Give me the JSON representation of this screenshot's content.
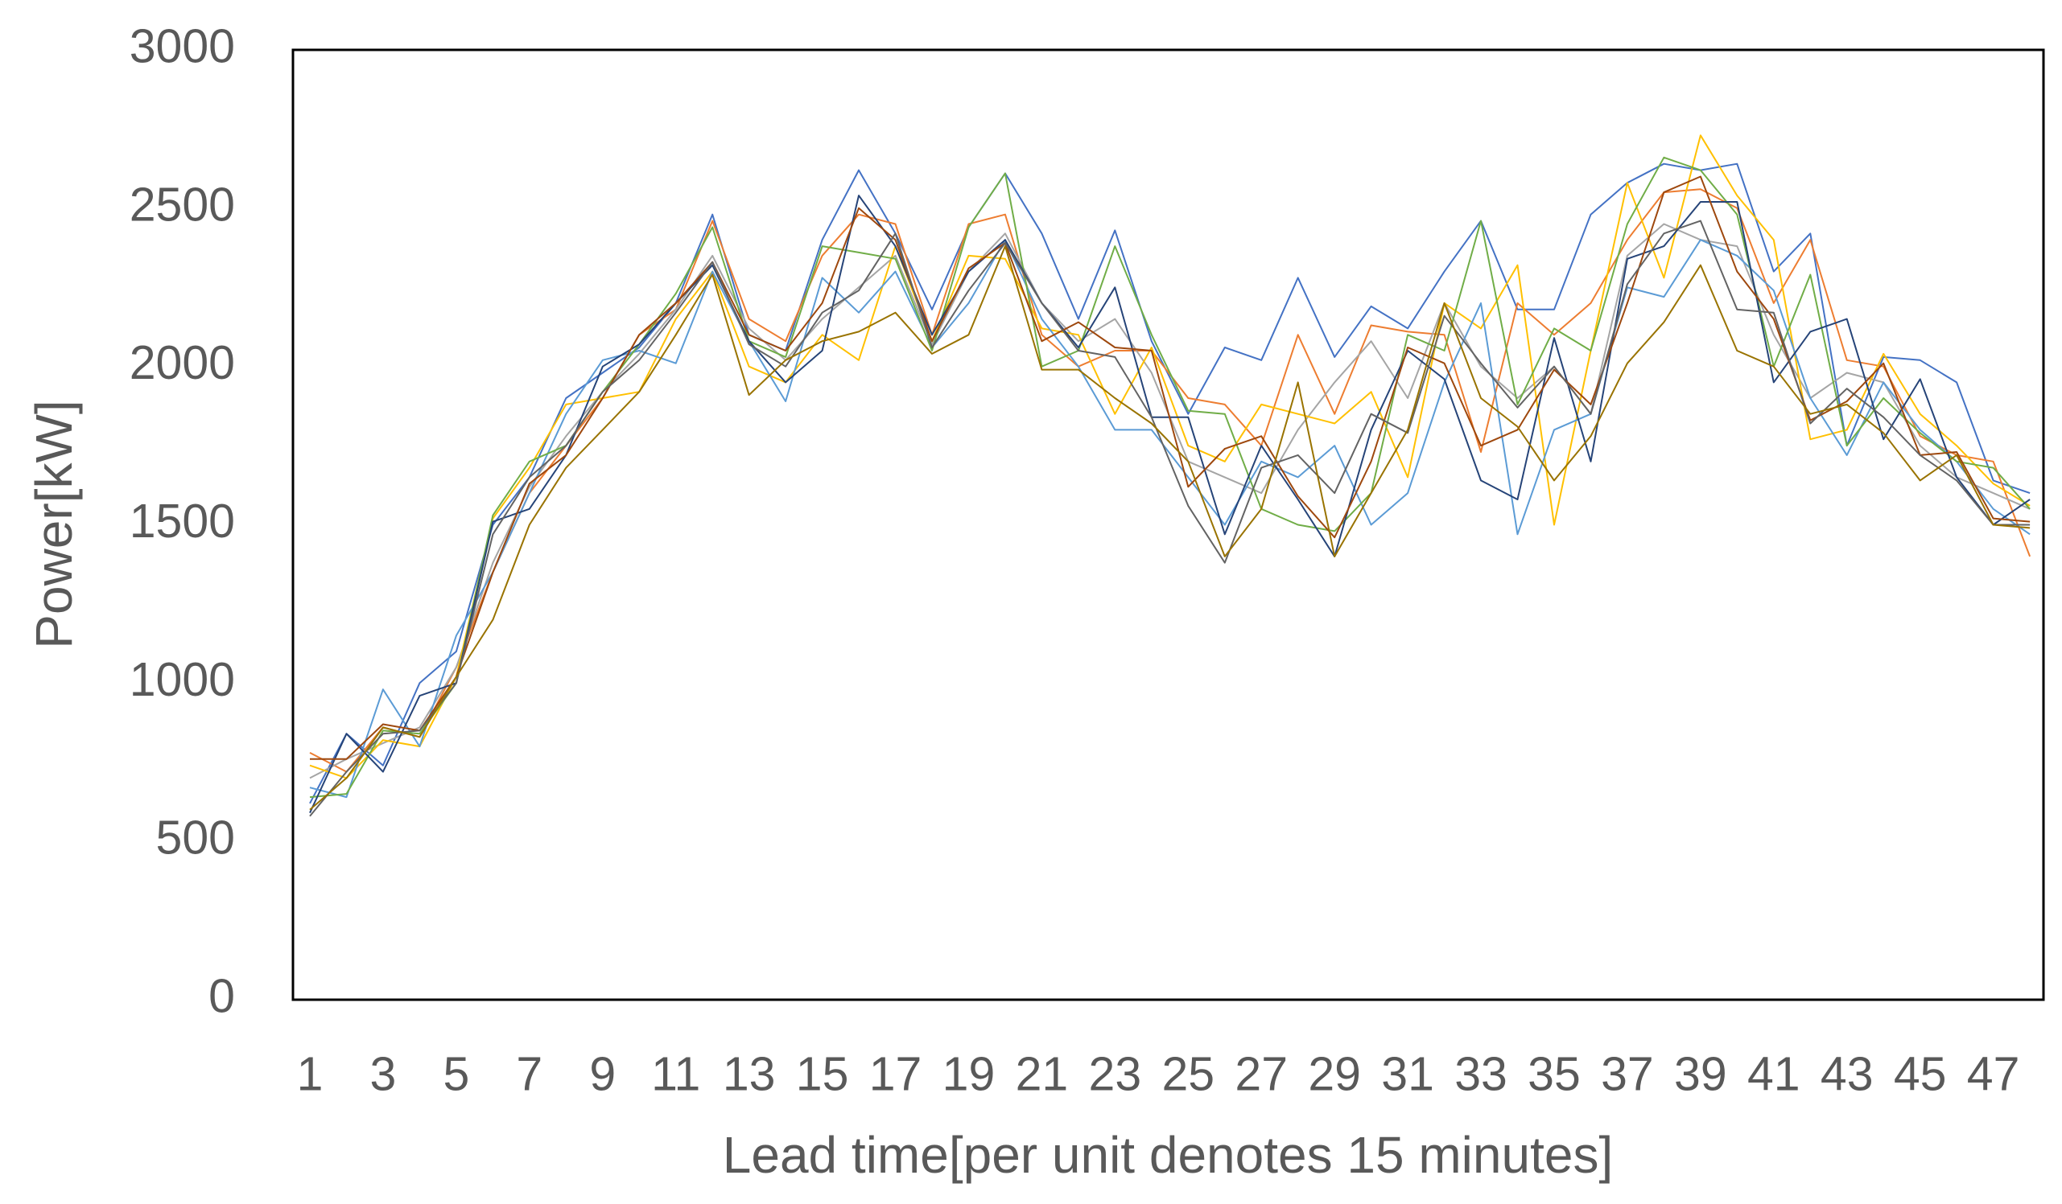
{
  "chart_data": {
    "type": "line",
    "x_label": "Lead time[per unit denotes 15 minutes]",
    "y_label": "Power[kW]",
    "categories": [
      "1",
      null,
      "3",
      null,
      "5",
      null,
      "7",
      null,
      "9",
      null,
      "11",
      null,
      "13",
      null,
      "15",
      null,
      "17",
      null,
      "19",
      null,
      "21",
      null,
      "23",
      null,
      "25",
      null,
      "27",
      null,
      "29",
      null,
      "31",
      null,
      "33",
      null,
      "35",
      null,
      "37",
      null,
      "39",
      null,
      "41",
      null,
      "43",
      null,
      "45",
      null,
      "47",
      null
    ],
    "ylim": [
      0,
      3000
    ],
    "yticks": [
      0,
      500,
      1000,
      1500,
      2000,
      2500,
      3000
    ],
    "grid": false,
    "series": [
      {
        "color": "#4472C4",
        "values": [
          620,
          840,
          740,
          1000,
          1100,
          1500,
          1650,
          1900,
          1980,
          2060,
          2200,
          2480,
          2100,
          2050,
          2400,
          2620,
          2420,
          2180,
          2440,
          2610,
          2420,
          2150,
          2430,
          2080,
          1850,
          2060,
          2020,
          2280,
          2030,
          2190,
          2120,
          2300,
          2460,
          2180,
          2180,
          2480,
          2580,
          2640,
          2620,
          2640,
          2300,
          2420,
          1750,
          2030,
          2020,
          1950,
          1640,
          1600
        ]
      },
      {
        "color": "#ED7D31",
        "values": [
          780,
          720,
          860,
          830,
          1050,
          1350,
          1600,
          1750,
          1900,
          2100,
          2180,
          2460,
          2150,
          2080,
          2350,
          2480,
          2450,
          2100,
          2450,
          2480,
          2100,
          2000,
          2050,
          2050,
          1900,
          1880,
          1750,
          2100,
          1850,
          2130,
          2110,
          2100,
          1730,
          2200,
          2100,
          2200,
          2400,
          2550,
          2560,
          2500,
          2200,
          2400,
          2020,
          2000,
          1780,
          1720,
          1700,
          1400
        ]
      },
      {
        "color": "#A5A5A5",
        "values": [
          700,
          760,
          810,
          860,
          1050,
          1380,
          1620,
          1780,
          1920,
          2040,
          2180,
          2350,
          2120,
          2020,
          2150,
          2250,
          2350,
          2070,
          2300,
          2420,
          2200,
          2080,
          2150,
          1980,
          1700,
          1650,
          1600,
          1800,
          1950,
          2080,
          1900,
          2200,
          2000,
          1900,
          2000,
          1850,
          2350,
          2450,
          2400,
          2380,
          2100,
          1900,
          1980,
          1950,
          1750,
          1650,
          1600,
          1550
        ]
      },
      {
        "color": "#FFC000",
        "values": [
          740,
          700,
          820,
          800,
          1020,
          1520,
          1680,
          1880,
          1900,
          1920,
          2150,
          2300,
          2000,
          1950,
          2100,
          2020,
          2380,
          2080,
          2350,
          2340,
          2120,
          2100,
          1850,
          2060,
          1750,
          1700,
          1880,
          1850,
          1820,
          1920,
          1650,
          2200,
          2120,
          2320,
          1500,
          2050,
          2580,
          2280,
          2730,
          2540,
          2400,
          1770,
          1800,
          2040,
          1850,
          1750,
          1630,
          1560
        ]
      },
      {
        "color": "#5B9BD5",
        "values": [
          670,
          640,
          980,
          800,
          1150,
          1350,
          1600,
          1850,
          2020,
          2050,
          2010,
          2300,
          2080,
          1890,
          2280,
          2170,
          2300,
          2060,
          2200,
          2400,
          2150,
          2000,
          1800,
          1800,
          1650,
          1500,
          1700,
          1650,
          1750,
          1500,
          1600,
          1950,
          2200,
          1470,
          1800,
          1850,
          2250,
          2220,
          2400,
          2350,
          2240,
          1900,
          1720,
          1950,
          1800,
          1700,
          1550,
          1470
        ]
      },
      {
        "color": "#70AD47",
        "values": [
          640,
          650,
          850,
          840,
          1000,
          1530,
          1700,
          1750,
          1920,
          2070,
          2230,
          2440,
          2080,
          2030,
          2380,
          2360,
          2340,
          2050,
          2440,
          2610,
          2000,
          2050,
          2380,
          2100,
          1860,
          1850,
          1550,
          1500,
          1480,
          1600,
          2100,
          2050,
          2460,
          1880,
          2120,
          2050,
          2450,
          2660,
          2620,
          2480,
          2000,
          2290,
          1750,
          1900,
          1790,
          1700,
          1680,
          1550
        ]
      },
      {
        "color": "#264478",
        "values": [
          590,
          840,
          720,
          960,
          1000,
          1510,
          1550,
          1720,
          2000,
          2070,
          2200,
          2320,
          2080,
          1950,
          2050,
          2540,
          2380,
          2100,
          2300,
          2400,
          2200,
          2060,
          2250,
          1840,
          1840,
          1470,
          1750,
          1580,
          1400,
          1800,
          2050,
          1960,
          1640,
          1580,
          2090,
          1700,
          2340,
          2380,
          2520,
          2520,
          1950,
          2110,
          2150,
          1770,
          1960,
          1650,
          1500,
          1580
        ]
      },
      {
        "color": "#9E480E",
        "values": [
          760,
          760,
          870,
          850,
          1020,
          1350,
          1630,
          1720,
          1900,
          2100,
          2200,
          2330,
          2100,
          2050,
          2200,
          2500,
          2400,
          2080,
          2310,
          2390,
          2080,
          2140,
          2060,
          2050,
          1620,
          1740,
          1780,
          1590,
          1460,
          1700,
          2060,
          2010,
          1750,
          1800,
          1990,
          1880,
          2200,
          2550,
          2600,
          2300,
          2150,
          1830,
          1890,
          2010,
          1720,
          1730,
          1520,
          1510
        ]
      },
      {
        "color": "#636363",
        "values": [
          580,
          720,
          840,
          850,
          1000,
          1470,
          1650,
          1750,
          1920,
          2020,
          2170,
          2330,
          2070,
          2000,
          2170,
          2240,
          2420,
          2060,
          2240,
          2390,
          2200,
          2050,
          2030,
          1840,
          1560,
          1380,
          1680,
          1720,
          1600,
          1850,
          1790,
          2160,
          2010,
          1870,
          2000,
          1850,
          2260,
          2420,
          2460,
          2180,
          2170,
          1820,
          1930,
          1840,
          1720,
          1640,
          1500,
          1500
        ]
      },
      {
        "color": "#997300",
        "values": [
          600,
          700,
          860,
          830,
          1020,
          1200,
          1500,
          1680,
          1800,
          1920,
          2100,
          2290,
          1910,
          2020,
          2080,
          2110,
          2170,
          2040,
          2100,
          2380,
          1990,
          1990,
          1900,
          1820,
          1700,
          1400,
          1550,
          1950,
          1400,
          1600,
          1800,
          2200,
          1900,
          1810,
          1640,
          1780,
          2010,
          2140,
          2320,
          2050,
          2000,
          1850,
          1880,
          1790,
          1640,
          1720,
          1500,
          1490
        ]
      }
    ]
  }
}
